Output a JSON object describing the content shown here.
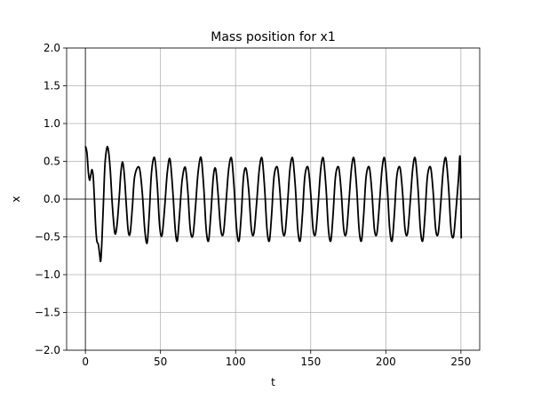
{
  "chart_data": {
    "type": "line",
    "title": "Mass position for x1",
    "xlabel": "t",
    "ylabel": "x",
    "xlim": [
      -12.5,
      262.5
    ],
    "ylim": [
      -2.0,
      2.0
    ],
    "xticks": [
      0,
      50,
      100,
      150,
      200,
      250
    ],
    "yticks": [
      -2.0,
      -1.5,
      -1.0,
      -0.5,
      0.0,
      0.5,
      1.0,
      1.5,
      2.0
    ],
    "xtick_labels": [
      "0",
      "50",
      "100",
      "150",
      "200",
      "250"
    ],
    "ytick_labels": [
      "−2.0",
      "−1.5",
      "−1.0",
      "−0.5",
      "0.0",
      "0.5",
      "1.0",
      "1.5",
      "2.0"
    ],
    "grid": true,
    "reference_lines": {
      "x": 0,
      "y": 0
    },
    "series": [
      {
        "color": "#000000",
        "points": [
          [
            0,
            0.7
          ],
          [
            1,
            0.62
          ],
          [
            2,
            0.35
          ],
          [
            2.8,
            0.25
          ],
          [
            3.6,
            0.32
          ],
          [
            4.4,
            0.39
          ],
          [
            5.2,
            0.3
          ],
          [
            6,
            0.0
          ],
          [
            6.8,
            -0.35
          ],
          [
            7.6,
            -0.55
          ],
          [
            8.6,
            -0.6
          ],
          [
            9.4,
            -0.72
          ],
          [
            10.2,
            -0.82
          ],
          [
            11,
            -0.55
          ],
          [
            12,
            -0.05
          ],
          [
            13,
            0.45
          ],
          [
            14.2,
            0.67
          ],
          [
            15.2,
            0.66
          ],
          [
            16.5,
            0.4
          ],
          [
            18,
            -0.1
          ],
          [
            19.6,
            -0.45
          ],
          [
            21,
            -0.35
          ],
          [
            22.6,
            0.05
          ],
          [
            23.6,
            0.35
          ],
          [
            24.8,
            0.49
          ],
          [
            26,
            0.3
          ],
          [
            27.3,
            -0.1
          ],
          [
            28.5,
            -0.42
          ],
          [
            29.8,
            -0.45
          ],
          [
            31.3,
            -0.1
          ],
          [
            32.8,
            0.3
          ],
          [
            35.8,
            0.42
          ],
          [
            37.8,
            0.1
          ],
          [
            39.5,
            -0.4
          ],
          [
            41.1,
            -0.58
          ],
          [
            42.5,
            -0.2
          ],
          [
            44,
            0.35
          ],
          [
            46,
            0.55
          ],
          [
            47.8,
            0.2
          ],
          [
            49.4,
            -0.35
          ],
          [
            51,
            -0.48
          ],
          [
            52.8,
            -0.1
          ],
          [
            54.5,
            0.35
          ],
          [
            56.3,
            0.53
          ],
          [
            58.2,
            0.1
          ],
          [
            59.8,
            -0.4
          ],
          [
            61.2,
            -0.55
          ],
          [
            62.7,
            -0.2
          ],
          [
            64.4,
            0.25
          ],
          [
            66.5,
            0.42
          ],
          [
            68.2,
            0.1
          ],
          [
            69.8,
            -0.4
          ],
          [
            71.6,
            -0.48
          ],
          [
            73.3,
            -0.1
          ],
          [
            75,
            0.35
          ],
          [
            77,
            0.55
          ],
          [
            78.8,
            0.15
          ],
          [
            80.4,
            -0.4
          ],
          [
            82,
            -0.55
          ],
          [
            83.5,
            -0.2
          ],
          [
            85.2,
            0.3
          ],
          [
            86.7,
            0.4
          ],
          [
            88.2,
            0.1
          ],
          [
            90.1,
            -0.4
          ],
          [
            91.9,
            -0.45
          ],
          [
            93.6,
            -0.05
          ],
          [
            95.4,
            0.4
          ],
          [
            97.3,
            0.54
          ],
          [
            99,
            0.15
          ],
          [
            100.7,
            -0.4
          ],
          [
            102.3,
            -0.55
          ],
          [
            103.8,
            -0.2
          ],
          [
            105.3,
            0.3
          ],
          [
            107,
            0.4
          ],
          [
            108.8,
            0.1
          ],
          [
            110.5,
            -0.4
          ],
          [
            112.2,
            -0.45
          ],
          [
            114,
            -0.05
          ],
          [
            115.8,
            0.4
          ],
          [
            117.6,
            0.54
          ],
          [
            119.3,
            0.15
          ],
          [
            120.9,
            -0.4
          ],
          [
            122.5,
            -0.55
          ],
          [
            124,
            -0.2
          ],
          [
            125.6,
            0.3
          ],
          [
            127.8,
            0.42
          ],
          [
            129.5,
            0.1
          ],
          [
            131.2,
            -0.4
          ],
          [
            132.9,
            -0.45
          ],
          [
            134.6,
            -0.05
          ],
          [
            136.2,
            0.4
          ],
          [
            138,
            0.54
          ],
          [
            139.8,
            0.15
          ],
          [
            141.4,
            -0.4
          ],
          [
            143,
            -0.55
          ],
          [
            144.5,
            -0.2
          ],
          [
            146.1,
            0.3
          ],
          [
            148.2,
            0.42
          ],
          [
            149.9,
            0.1
          ],
          [
            151.6,
            -0.4
          ],
          [
            153.3,
            -0.45
          ],
          [
            155,
            -0.05
          ],
          [
            156.7,
            0.4
          ],
          [
            158.4,
            0.54
          ],
          [
            160.2,
            0.15
          ],
          [
            161.8,
            -0.4
          ],
          [
            163.4,
            -0.55
          ],
          [
            164.9,
            -0.2
          ],
          [
            166.5,
            0.3
          ],
          [
            168.6,
            0.42
          ],
          [
            170.3,
            0.1
          ],
          [
            172,
            -0.4
          ],
          [
            173.7,
            -0.45
          ],
          [
            175.4,
            -0.05
          ],
          [
            177.1,
            0.4
          ],
          [
            178.8,
            0.54
          ],
          [
            180.6,
            0.15
          ],
          [
            182.2,
            -0.4
          ],
          [
            183.8,
            -0.55
          ],
          [
            185.3,
            -0.2
          ],
          [
            186.9,
            0.3
          ],
          [
            189,
            0.42
          ],
          [
            190.7,
            0.1
          ],
          [
            192.4,
            -0.4
          ],
          [
            194.1,
            -0.45
          ],
          [
            195.8,
            -0.05
          ],
          [
            197.5,
            0.4
          ],
          [
            199.2,
            0.54
          ],
          [
            201,
            0.15
          ],
          [
            202.6,
            -0.4
          ],
          [
            204.2,
            -0.55
          ],
          [
            205.7,
            -0.2
          ],
          [
            207.3,
            0.3
          ],
          [
            209.4,
            0.42
          ],
          [
            211.1,
            0.1
          ],
          [
            212.8,
            -0.4
          ],
          [
            214.5,
            -0.45
          ],
          [
            216.2,
            -0.05
          ],
          [
            217.9,
            0.4
          ],
          [
            219.6,
            0.54
          ],
          [
            221.4,
            0.15
          ],
          [
            223,
            -0.4
          ],
          [
            224.6,
            -0.55
          ],
          [
            226.1,
            -0.2
          ],
          [
            227.7,
            0.3
          ],
          [
            229.8,
            0.42
          ],
          [
            231.5,
            0.1
          ],
          [
            233.2,
            -0.4
          ],
          [
            234.9,
            -0.45
          ],
          [
            236.6,
            -0.05
          ],
          [
            238.3,
            0.4
          ],
          [
            240,
            0.54
          ],
          [
            241.8,
            0.15
          ],
          [
            243.4,
            -0.4
          ],
          [
            245,
            -0.5
          ],
          [
            246.5,
            -0.2
          ],
          [
            248.3,
            0.25
          ],
          [
            249.5,
            0.54
          ],
          [
            250.2,
            -0.52
          ]
        ]
      }
    ]
  }
}
